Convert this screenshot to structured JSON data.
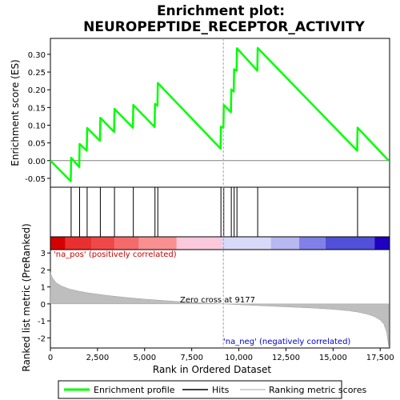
{
  "chart_data": {
    "type": "line",
    "title_line1": "Enrichment plot:",
    "title_line2": "NEUROPEPTIDE_RECEPTOR_ACTIVITY",
    "xlabel": "Rank in Ordered Dataset",
    "ylabel_top": "Enrichment score (ES)",
    "ylabel_bottom": "Ranked list metric (PreRanked)",
    "xlim": [
      0,
      18000
    ],
    "es_ylim": [
      -0.075,
      0.345
    ],
    "metric_ylim": [
      -2.6,
      3.2
    ],
    "x_ticks": [
      0,
      2500,
      5000,
      7500,
      10000,
      12500,
      15000,
      17500
    ],
    "x_tick_labels": [
      "0",
      "2,500",
      "5,000",
      "7,500",
      "10,000",
      "12,500",
      "15,000",
      "17,500"
    ],
    "es_ticks": [
      -0.05,
      0.0,
      0.05,
      0.1,
      0.15,
      0.2,
      0.25,
      0.3
    ],
    "es_tick_labels": [
      "-0.05",
      "0.00",
      "0.05",
      "0.10",
      "0.15",
      "0.20",
      "0.25",
      "0.30"
    ],
    "metric_ticks": [
      -2,
      -1,
      0,
      1,
      2,
      3
    ],
    "metric_tick_labels": [
      "-2",
      "-1",
      "0",
      "1",
      "2",
      "3"
    ],
    "hits": [
      1100,
      1550,
      1950,
      2650,
      3400,
      4400,
      5550,
      5700,
      9050,
      9200,
      9600,
      9750,
      9900,
      11000,
      16300
    ],
    "es_curve": {
      "x": [
        0,
        1080,
        1100,
        1530,
        1550,
        1930,
        1950,
        2630,
        2650,
        3380,
        3400,
        4380,
        4400,
        5530,
        5550,
        5680,
        5700,
        9030,
        9050,
        9180,
        9200,
        9580,
        9600,
        9730,
        9750,
        9880,
        9900,
        10980,
        11000,
        16280,
        16300,
        17950
      ],
      "y": [
        0.0,
        -0.058,
        0.008,
        -0.018,
        0.047,
        0.028,
        0.092,
        0.056,
        0.121,
        0.081,
        0.146,
        0.093,
        0.157,
        0.095,
        0.16,
        0.155,
        0.219,
        0.034,
        0.096,
        0.093,
        0.157,
        0.137,
        0.201,
        0.195,
        0.258,
        0.254,
        0.317,
        0.254,
        0.318,
        0.028,
        0.093,
        0.0
      ]
    },
    "metric_curve": {
      "x": [
        0,
        100,
        300,
        600,
        1000,
        1500,
        2000,
        3000,
        4000,
        5000,
        6000,
        7000,
        8000,
        9177,
        10000,
        11000,
        12000,
        13000,
        14000,
        15000,
        15800,
        16300,
        16800,
        17200,
        17500,
        17700,
        17850,
        17950
      ],
      "y": [
        1.85,
        1.55,
        1.25,
        1.05,
        0.88,
        0.75,
        0.65,
        0.5,
        0.38,
        0.28,
        0.2,
        0.12,
        0.06,
        0.0,
        -0.05,
        -0.1,
        -0.15,
        -0.2,
        -0.25,
        -0.32,
        -0.4,
        -0.48,
        -0.6,
        -0.75,
        -0.95,
        -1.2,
        -1.7,
        -2.5
      ]
    },
    "color_bar_segments": [
      {
        "x0": 0,
        "x1": 800,
        "color": "#d40000"
      },
      {
        "x0": 800,
        "x1": 2200,
        "color": "#e83030"
      },
      {
        "x0": 2200,
        "x1": 3400,
        "color": "#f04848"
      },
      {
        "x0": 3400,
        "x1": 4700,
        "color": "#f56a6a"
      },
      {
        "x0": 4700,
        "x1": 6700,
        "color": "#f89090"
      },
      {
        "x0": 6700,
        "x1": 9100,
        "color": "#fbc8dc"
      },
      {
        "x0": 9100,
        "x1": 11700,
        "color": "#d8d8f8"
      },
      {
        "x0": 11700,
        "x1": 13200,
        "color": "#b8b8f0"
      },
      {
        "x0": 13200,
        "x1": 14600,
        "color": "#8080e8"
      },
      {
        "x0": 14600,
        "x1": 17200,
        "color": "#5050d8"
      },
      {
        "x0": 17200,
        "x1": 18000,
        "color": "#2000c0"
      }
    ],
    "zero_cross": 9177,
    "zero_cross_label": "Zero cross at 9177",
    "pos_label": "'na_pos' (positively correlated)",
    "neg_label": "'na_neg' (negatively correlated)",
    "legend": [
      "Enrichment profile",
      "Hits",
      "Ranking metric scores"
    ],
    "colors": {
      "es_line": "#00ff00",
      "hit": "#000000",
      "metric_fill": "#bebebe",
      "pos_label": "#cc0000",
      "neg_label": "#0000cc",
      "legend_metric": "#c0c0c0"
    }
  }
}
